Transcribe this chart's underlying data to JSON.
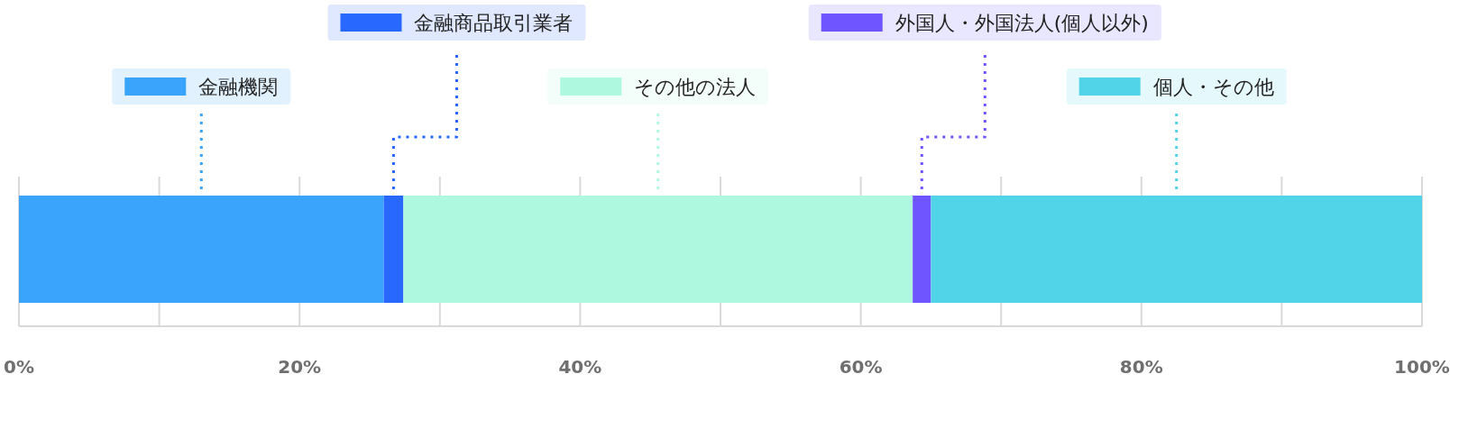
{
  "chart_data": {
    "type": "bar",
    "stacked": true,
    "orientation": "horizontal",
    "categories": [
      null
    ],
    "series": [
      {
        "name": "金融機関",
        "color": "#3aa3fb",
        "values": [
          26.0
        ]
      },
      {
        "name": "金融商品取引業者",
        "color": "#2968ff",
        "values": [
          1.4
        ]
      },
      {
        "name": "その他の法人",
        "color": "#adf8de",
        "values": [
          36.3
        ]
      },
      {
        "name": "外国人・外国法人(個人以外)",
        "color": "#6e55ff",
        "values": [
          1.3
        ]
      },
      {
        "name": "個人・その他",
        "color": "#52d4e8",
        "values": [
          35.0
        ]
      }
    ],
    "xlim": [
      0,
      100
    ],
    "xticks": [
      {
        "value": 0,
        "label": "0%"
      },
      {
        "value": 10,
        "label": null
      },
      {
        "value": 20,
        "label": "20%"
      },
      {
        "value": 30,
        "label": null
      },
      {
        "value": 40,
        "label": "40%"
      },
      {
        "value": 50,
        "label": null
      },
      {
        "value": 60,
        "label": "60%"
      },
      {
        "value": 70,
        "label": null
      },
      {
        "value": 80,
        "label": "80%"
      },
      {
        "value": 90,
        "label": null
      },
      {
        "value": 100,
        "label": "100%"
      }
    ],
    "grid": "x",
    "legend": "top"
  }
}
